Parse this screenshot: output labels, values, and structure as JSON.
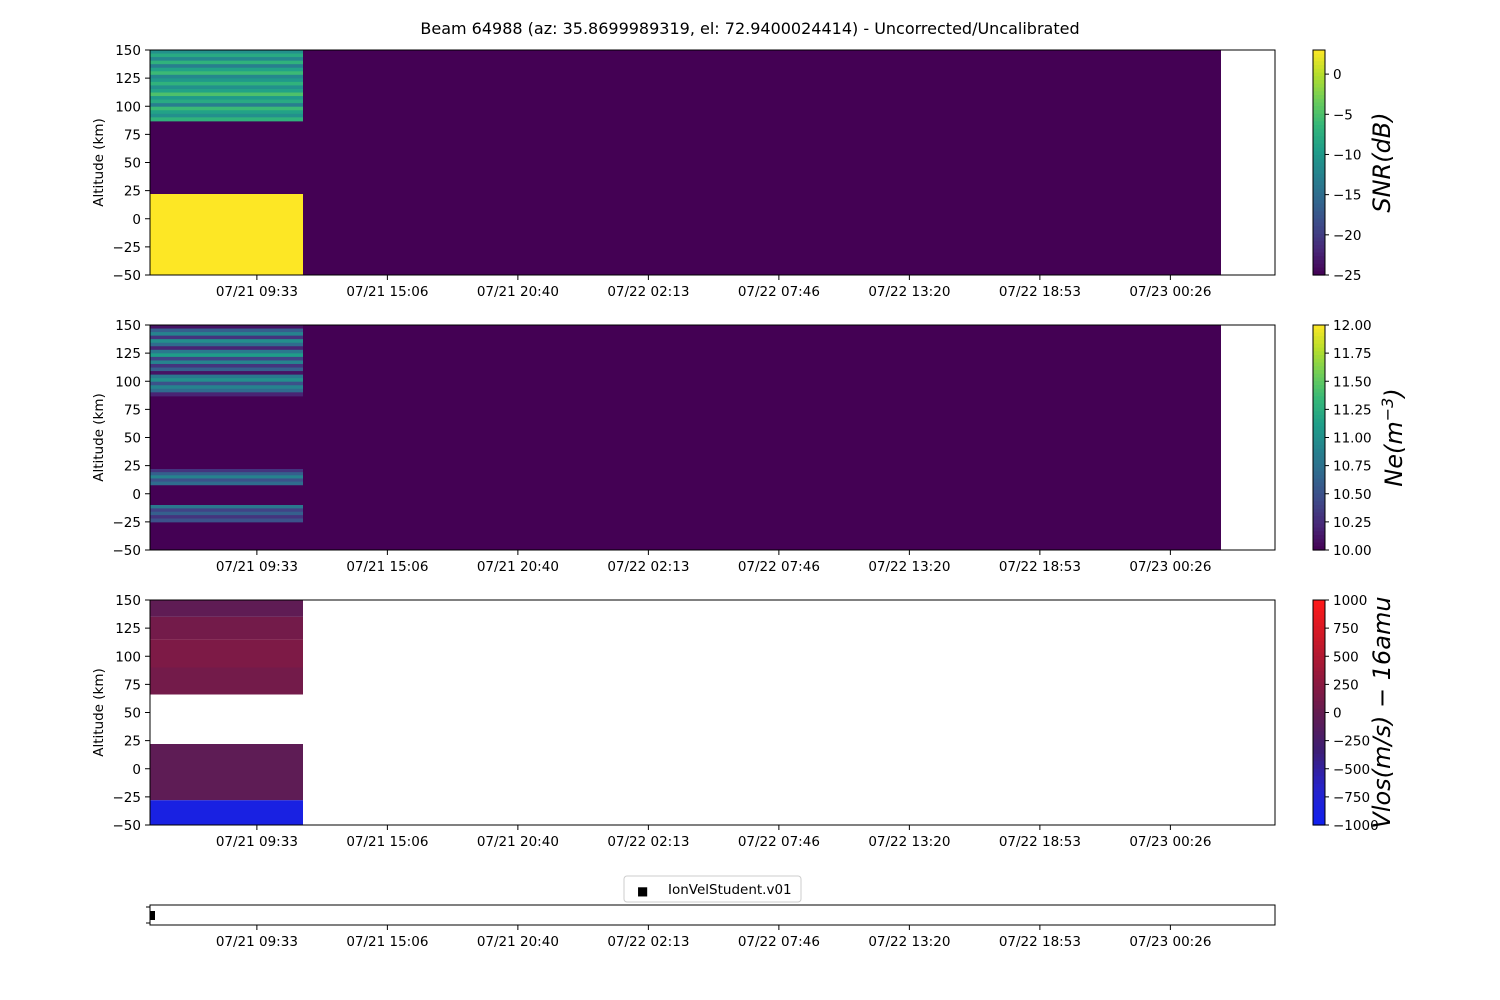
{
  "title": "Beam 64988 (az: 35.8699989319, el: 72.9400024414) - Uncorrected/Uncalibrated",
  "x_tick_labels": [
    "07/21 09:33",
    "07/21 15:06",
    "07/21 20:40",
    "07/22 02:13",
    "07/22 07:46",
    "07/22 13:20",
    "07/22 18:53",
    "07/23 00:26"
  ],
  "chart_data": [
    {
      "type": "heatmap",
      "id": "snr",
      "ylabel": "Altitude (km)",
      "ylim": [
        -50,
        150
      ],
      "yticks": [
        "150",
        "125",
        "100",
        "75",
        "50",
        "25",
        "0",
        "−25",
        "−50"
      ],
      "colorbar": {
        "label": "SNR(dB)",
        "cmap": "viridis",
        "range": [
          -25,
          3
        ],
        "ticks": [
          0,
          -5,
          -10,
          -15,
          -20,
          -25
        ],
        "tick_labels": [
          "0",
          "−5",
          "−10",
          "−15",
          "−20",
          "−25"
        ]
      },
      "background_fill": {
        "value": -25,
        "x_end_fraction": 0.952
      },
      "cells": [
        {
          "alt": [
            -50,
            22
          ],
          "value": 3
        },
        {
          "alt": [
            87,
            150
          ],
          "value": -11,
          "striped": true,
          "stripe_values": [
            -11,
            -8,
            -12,
            -7,
            -13,
            -9,
            -6,
            -12,
            -10,
            -7,
            -11,
            -9,
            -5,
            -10,
            -8,
            -13,
            -6,
            -9,
            -11,
            -7
          ]
        }
      ],
      "cells_x_fraction": [
        0,
        0.136
      ]
    },
    {
      "type": "heatmap",
      "id": "ne",
      "ylabel": "Altitude (km)",
      "ylim": [
        -50,
        150
      ],
      "yticks": [
        "150",
        "125",
        "100",
        "75",
        "50",
        "25",
        "0",
        "−25",
        "−50"
      ],
      "colorbar": {
        "label": "Ne(m",
        "label_sup": "−3",
        "label_close": ")",
        "cmap": "viridis",
        "range": [
          10.0,
          12.0
        ],
        "ticks": [
          12.0,
          11.75,
          11.5,
          11.25,
          11.0,
          10.75,
          10.5,
          10.25,
          10.0
        ],
        "tick_labels": [
          "12.00",
          "11.75",
          "11.50",
          "11.25",
          "11.00",
          "10.75",
          "10.50",
          "10.25",
          "10.00"
        ]
      },
      "background_fill": {
        "value": 10.0,
        "x_end_fraction": 0.952
      },
      "cells": [
        {
          "alt": [
            87,
            150
          ],
          "value": 10.9,
          "striped": true,
          "stripe_values": [
            10.1,
            10.6,
            10.9,
            10.3,
            11.0,
            10.7,
            10.2,
            10.8,
            11.1,
            10.4,
            10.9,
            10.3,
            10.6,
            10.1,
            10.8,
            11.0,
            10.5,
            10.9,
            10.7,
            10.2
          ]
        },
        {
          "alt": [
            8,
            22
          ],
          "value": 10.6,
          "striped": true,
          "stripe_values": [
            10.3,
            10.6,
            10.9,
            10.5,
            10.7
          ]
        },
        {
          "alt": [
            -25,
            -10
          ],
          "value": 10.5,
          "striped": true,
          "stripe_values": [
            10.8,
            10.4,
            10.6,
            10.3,
            10.5
          ]
        }
      ],
      "cells_x_fraction": [
        0,
        0.136
      ]
    },
    {
      "type": "heatmap",
      "id": "vlos",
      "ylabel": "Altitude (km)",
      "ylim": [
        -50,
        150
      ],
      "yticks": [
        "150",
        "125",
        "100",
        "75",
        "50",
        "25",
        "0",
        "−25",
        "−50"
      ],
      "colorbar": {
        "label": "Vlos(m/s) − 16amu",
        "cmap": "bwr_dark",
        "range": [
          -1000,
          1000
        ],
        "ticks": [
          1000,
          750,
          500,
          250,
          0,
          -250,
          -500,
          -750,
          -1000
        ],
        "tick_labels": [
          "1000",
          "750",
          "500",
          "250",
          "0",
          "−250",
          "−500",
          "−750",
          "−1000"
        ]
      },
      "background_fill": null,
      "cells": [
        {
          "alt": [
            135,
            150
          ],
          "value": -40
        },
        {
          "alt": [
            115,
            135
          ],
          "value": 100
        },
        {
          "alt": [
            90,
            115
          ],
          "value": 170
        },
        {
          "alt": [
            66,
            90
          ],
          "value": 100
        },
        {
          "alt": [
            -28,
            22
          ],
          "value": -50
        },
        {
          "alt": [
            -50,
            -28
          ],
          "value": -880
        }
      ],
      "cells_x_fraction": [
        0,
        0.136
      ]
    }
  ],
  "legend": {
    "marker": "■",
    "label": "IonVelStudent.v01"
  }
}
